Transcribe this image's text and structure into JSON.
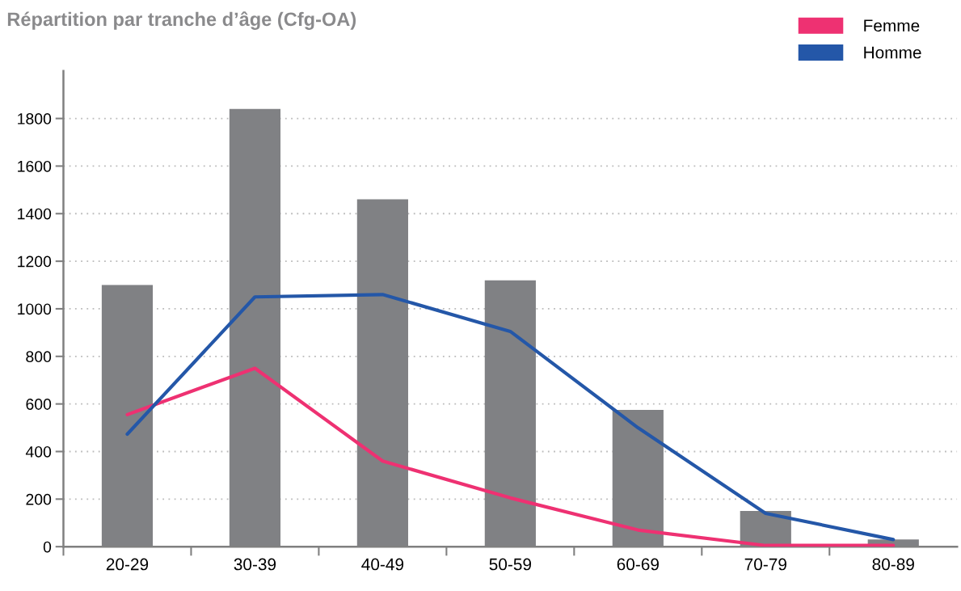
{
  "chart_data": {
    "type": "bar",
    "title": "Répartition par tranche d’âge (Cfg-OA)",
    "categories": [
      "20-29",
      "30-39",
      "40-49",
      "50-59",
      "60-69",
      "70-79",
      "80-89"
    ],
    "series": [
      {
        "color": "#808184",
        "values": [
          1100,
          1840,
          1460,
          1120,
          575,
          150,
          30
        ]
      },
      {
        "type": "line",
        "name": "Femme",
        "color": "#ee3172",
        "values": [
          555,
          750,
          360,
          205,
          70,
          5,
          5
        ]
      },
      {
        "type": "line",
        "name": "Homme",
        "color": "#2457a8",
        "values": [
          473,
          1050,
          1060,
          905,
          500,
          140,
          30
        ]
      }
    ],
    "ylim": [
      0,
      2000
    ],
    "yticks": [
      0,
      200,
      400,
      600,
      800,
      1000,
      1200,
      1400,
      1600,
      1800
    ],
    "grid": "y",
    "legend": "top right"
  }
}
